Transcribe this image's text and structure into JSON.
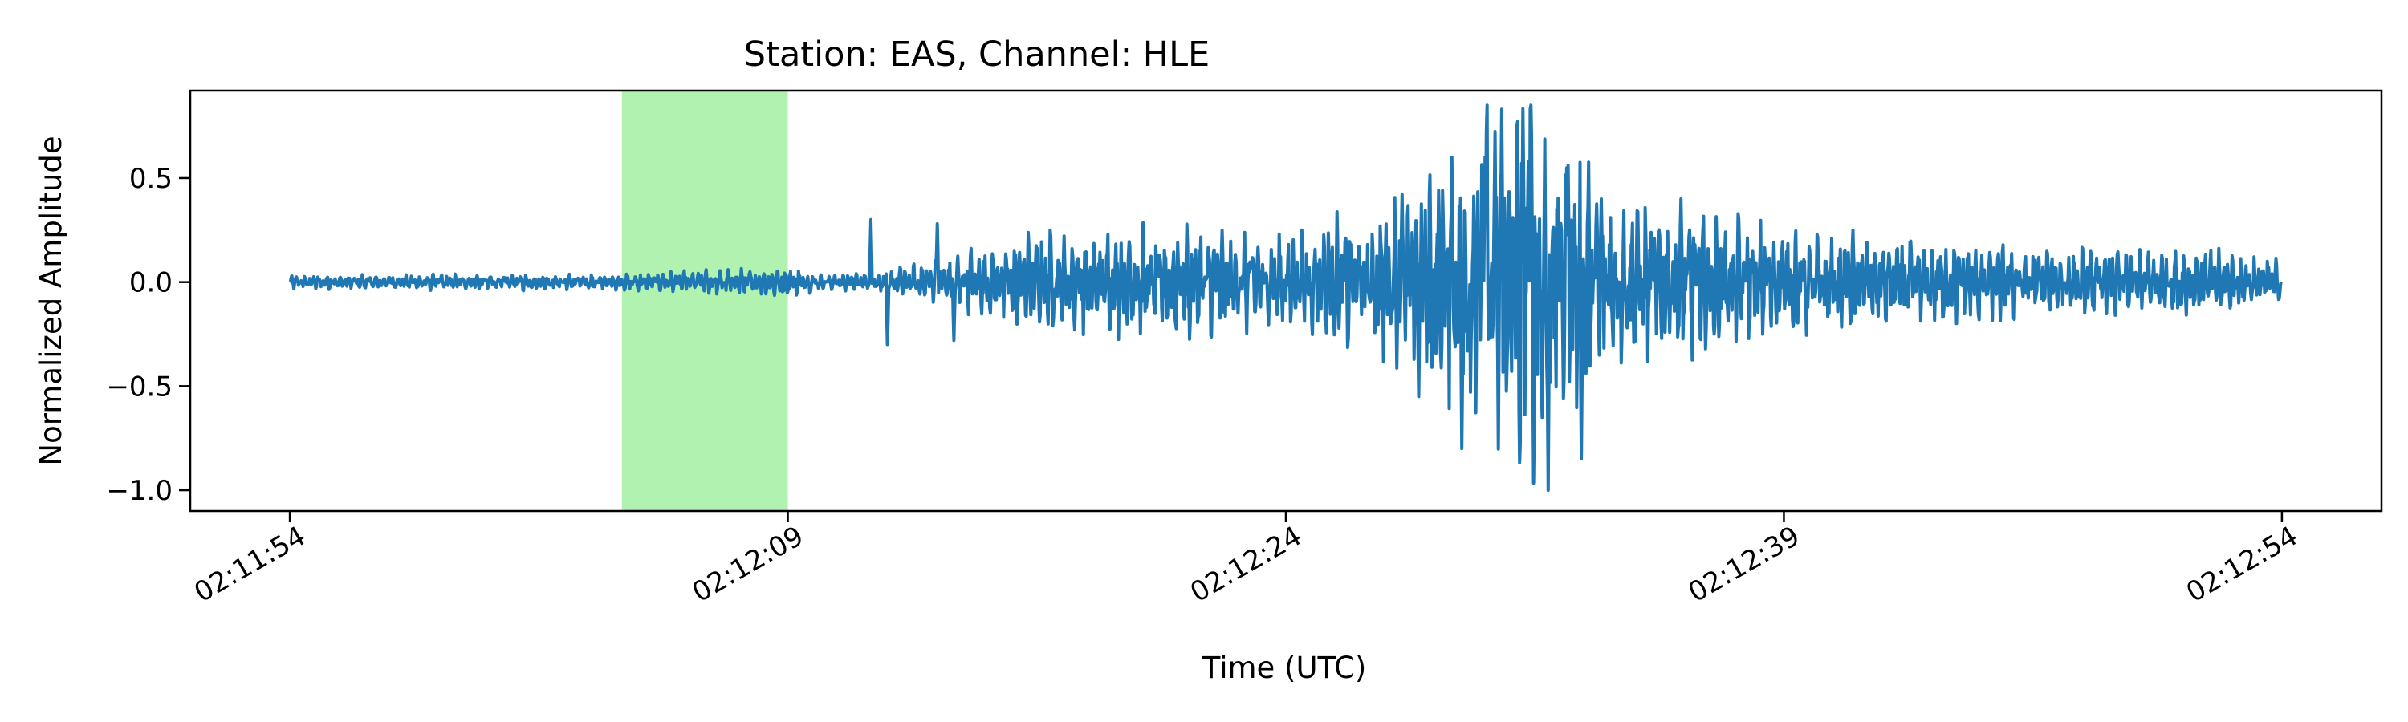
{
  "chart_data": {
    "type": "line",
    "title": "Station: EAS, Channel: HLE",
    "xlabel": "Time (UTC)",
    "ylabel": "Normalized Amplitude",
    "x_start": "02:11:54",
    "x_end": "02:12:54",
    "xlim": [
      "02:11:51",
      "02:12:57"
    ],
    "ylim": [
      -1.1,
      0.92
    ],
    "x_ticks": [
      "02:11:54",
      "02:12:09",
      "02:12:24",
      "02:12:39",
      "02:12:54"
    ],
    "y_ticks": [
      0.5,
      0.0,
      -0.5,
      -1.0
    ],
    "y_tick_labels": [
      "0.5",
      "0.0",
      "−0.5",
      "−1.0"
    ],
    "highlight": {
      "start": "02:12:04",
      "end": "02:12:09",
      "color": "#b2f2b1"
    },
    "grid": false,
    "series": [
      {
        "color": "#1f77b4",
        "envelope": [
          [
            "02:11:54",
            0.03
          ],
          [
            "02:12:00",
            0.035
          ],
          [
            "02:12:04",
            0.035
          ],
          [
            "02:12:08",
            0.06
          ],
          [
            "02:12:09",
            0.07
          ],
          [
            "02:12:10",
            0.03
          ],
          [
            "02:12:12",
            0.05
          ],
          [
            "02:12:14",
            0.12
          ],
          [
            "02:12:16",
            0.2
          ],
          [
            "02:12:18",
            0.22
          ],
          [
            "02:12:21",
            0.25
          ],
          [
            "02:12:24",
            0.2
          ],
          [
            "02:12:27",
            0.35
          ],
          [
            "02:12:29",
            0.6
          ],
          [
            "02:12:30",
            0.8
          ],
          [
            "02:12:31",
            0.95
          ],
          [
            "02:12:32",
            0.75
          ],
          [
            "02:12:34",
            0.4
          ],
          [
            "02:12:37",
            0.3
          ],
          [
            "02:12:40",
            0.22
          ],
          [
            "02:12:44",
            0.18
          ],
          [
            "02:12:48",
            0.15
          ],
          [
            "02:12:52",
            0.15
          ],
          [
            "02:12:54",
            0.1
          ]
        ],
        "peaks": [
          [
            "02:12:27.5",
            0.42
          ],
          [
            "02:12:28.0",
            -0.55
          ],
          [
            "02:12:29.0",
            0.6
          ],
          [
            "02:12:29.3",
            -0.8
          ],
          [
            "02:12:30.0",
            0.6
          ],
          [
            "02:12:30.5",
            0.83
          ],
          [
            "02:12:31.3",
            0.58
          ],
          [
            "02:12:31.9",
            -1.0
          ],
          [
            "02:12:32.5",
            0.56
          ],
          [
            "02:12:32.9",
            -0.85
          ],
          [
            "02:12:33.5",
            0.4
          ],
          [
            "02:12:11.5",
            0.3
          ],
          [
            "02:12:12.0",
            -0.3
          ],
          [
            "02:12:13.5",
            0.28
          ],
          [
            "02:12:14.0",
            -0.28
          ]
        ]
      }
    ]
  }
}
